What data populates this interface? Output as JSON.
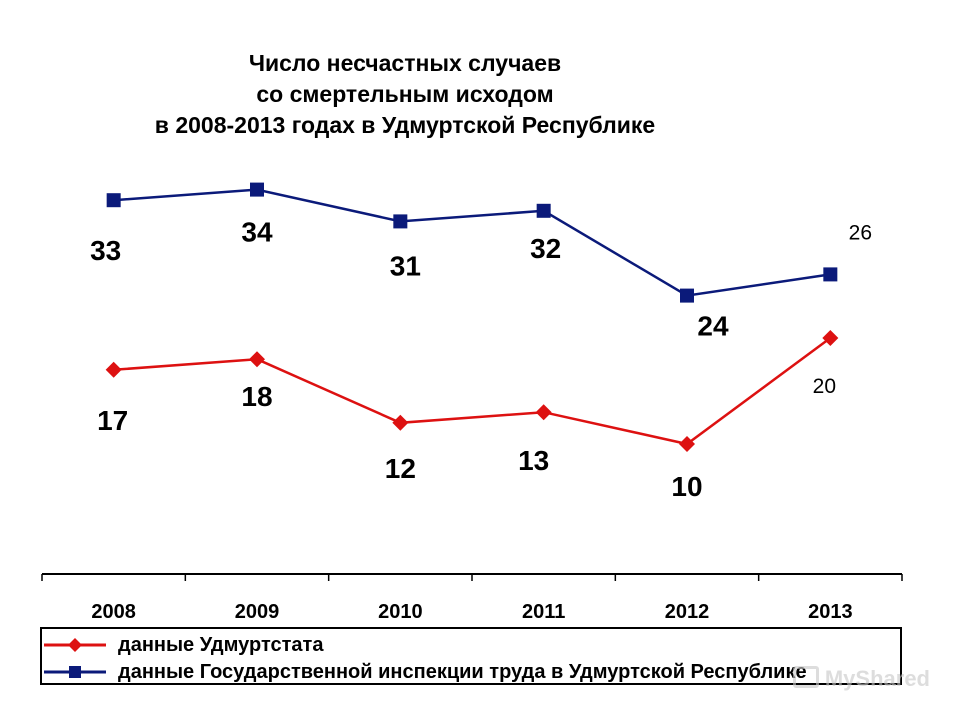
{
  "title_lines": [
    "Число несчастных случаев",
    "со смертельным исходом",
    "в 2008-2013 годах в Удмуртской Республике"
  ],
  "watermark": "MyShared",
  "chart_data": {
    "type": "line",
    "title": "Число несчастных случаев со смертельным исходом в 2008-2013 годах в Удмуртской Республике",
    "categories": [
      "2008",
      "2009",
      "2010",
      "2011",
      "2012",
      "2013"
    ],
    "series": [
      {
        "name": "данные Удмуртстата",
        "values": [
          17,
          18,
          12,
          13,
          10,
          20
        ],
        "color": "#dd1111",
        "marker": "diamond"
      },
      {
        "name": "данные Государственной инспекции труда в Удмуртской Республике",
        "values": [
          33,
          34,
          31,
          32,
          24,
          26
        ],
        "color": "#0b1a7a",
        "marker": "square"
      }
    ],
    "xlabel": "",
    "ylabel": "",
    "legend_position": "bottom",
    "grid": false
  }
}
